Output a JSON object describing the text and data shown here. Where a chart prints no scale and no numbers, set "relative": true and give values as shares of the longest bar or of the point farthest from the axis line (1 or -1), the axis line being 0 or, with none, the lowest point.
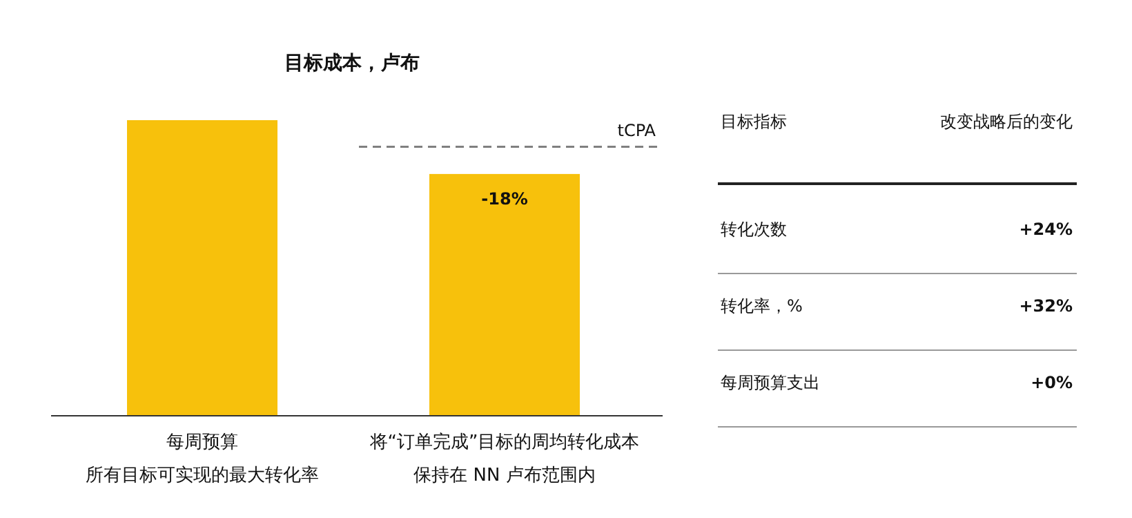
{
  "chart_data": [
    {
      "type": "bar",
      "title": "目标成本，卢布",
      "relative": true,
      "categories": [
        "每周预算",
        "将“订单完成”目标的周均转化成本"
      ],
      "values": [
        1,
        0.818
      ],
      "color": "#f7c10c",
      "annotations": [
        "所有目标可实现的最大转化率",
        "保持在 NN 卢布范围内",
        {
          "text": "-18%",
          "x": "将“订单完成”目标的周均转化成本",
          "y": 0.818
        }
      ],
      "ref_lines": [
        {
          "axis": "y",
          "value": 0.91,
          "label": "tCPA",
          "color": "#808080",
          "line_style": "dashed"
        }
      ]
    },
    {
      "type": "other",
      "annotations": [
        "目标指标",
        "改变战略后的变化"
      ],
      "categories": [
        "转化次数",
        "转化率，%",
        "每周预算支出"
      ],
      "value_labels": [
        "+24%",
        "+32%",
        "+0%"
      ]
    }
  ]
}
